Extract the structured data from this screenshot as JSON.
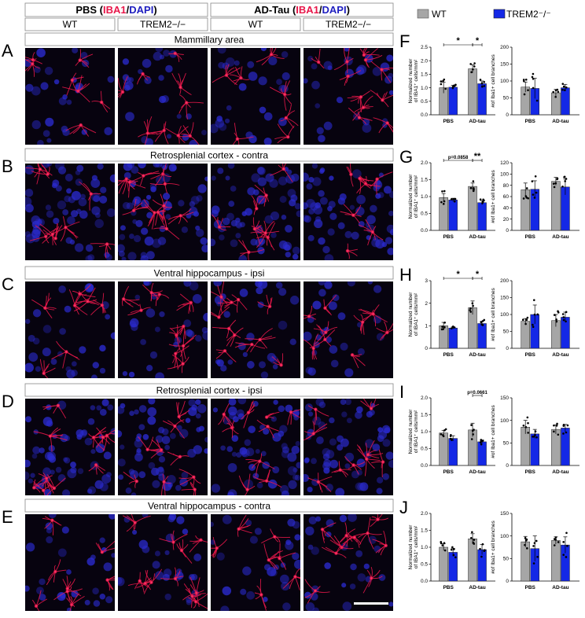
{
  "header": {
    "groups": [
      {
        "name": "PBS",
        "stain_red": "IBA1",
        "stain_blue": "DAPI"
      },
      {
        "name": "AD-Tau",
        "stain_red": "IBA1",
        "stain_blue": "DAPI"
      }
    ],
    "genotypes": [
      "WT",
      "TREM2−/−",
      "WT",
      "TREM2−/−"
    ]
  },
  "legend": {
    "items": [
      {
        "label": "WT",
        "color": "#a6a6a6"
      },
      {
        "label": "TREM2⁻/⁻",
        "color": "#1428e6"
      }
    ]
  },
  "colors": {
    "wt_bar": "#a6a6a6",
    "ko_bar": "#1428e6",
    "iba1": "#e8174a",
    "dapi": "#2b2bd0"
  },
  "rows": [
    {
      "letter": "A",
      "region": "Mammillary area"
    },
    {
      "letter": "B",
      "region": "Retrosplenial cortex - contra"
    },
    {
      "letter": "C",
      "region": "Ventral hippocampus - ipsi"
    },
    {
      "letter": "D",
      "region": "Retrosplenial cortex - ipsi"
    },
    {
      "letter": "E",
      "region": "Ventral hippocampus - contra"
    }
  ],
  "chart_data": [
    {
      "panel": "F",
      "side": "left",
      "type": "bar",
      "ylabel": "Normalized number of IBA1⁺ cells/mm²",
      "ylim": [
        0,
        2.5
      ],
      "ticks": [
        "0.0",
        "0.5",
        "1.0",
        "1.5",
        "2.0",
        "2.5"
      ],
      "categories": [
        "PBS",
        "AD-tau"
      ],
      "series": [
        {
          "name": "WT",
          "values": [
            1.0,
            1.7
          ],
          "errors": [
            0.2,
            0.15
          ]
        },
        {
          "name": "TREM2⁻/⁻",
          "values": [
            1.02,
            1.15
          ],
          "errors": [
            0.07,
            0.1
          ]
        }
      ],
      "annotations": [
        {
          "text": "*",
          "type": "pbs-wt-vs-adtau-wt"
        },
        {
          "text": "*",
          "type": "adtau-wt-vs-ko"
        }
      ]
    },
    {
      "panel": "F",
      "side": "right",
      "type": "bar",
      "ylabel": "#of Iba1+ cell branches",
      "ylim": [
        0,
        200
      ],
      "ticks": [
        "0",
        "50",
        "100",
        "150",
        "200"
      ],
      "categories": [
        "PBS",
        "AD-tau"
      ],
      "series": [
        {
          "name": "WT",
          "values": [
            82,
            65
          ],
          "errors": [
            15,
            10
          ]
        },
        {
          "name": "TREM2⁻/⁻",
          "values": [
            78,
            80
          ],
          "errors": [
            30,
            10
          ]
        }
      ]
    },
    {
      "panel": "G",
      "side": "left",
      "type": "bar",
      "ylabel": "Normalized number of IBA1⁺ cells/mm²",
      "ylim": [
        0,
        2.0
      ],
      "ticks": [
        "0.0",
        "0.5",
        "1.0",
        "1.5",
        "2.0"
      ],
      "categories": [
        "PBS",
        "AD-tau"
      ],
      "series": [
        {
          "name": "WT",
          "values": [
            0.97,
            1.3
          ],
          "errors": [
            0.12,
            0.1
          ]
        },
        {
          "name": "TREM2⁻/⁻",
          "values": [
            0.9,
            0.82
          ],
          "errors": [
            0.05,
            0.06
          ]
        }
      ],
      "annotations": [
        {
          "text": "p=0.0858",
          "type": "pbs-wt-vs-adtau-wt"
        },
        {
          "text": "**",
          "type": "adtau-wt-vs-ko"
        }
      ]
    },
    {
      "panel": "G",
      "side": "right",
      "type": "bar",
      "ylabel": "#of Iba1+ cell branches",
      "ylim": [
        0,
        120
      ],
      "ticks": [
        "0",
        "20",
        "40",
        "60",
        "80",
        "100",
        "120"
      ],
      "categories": [
        "PBS",
        "AD-tau"
      ],
      "series": [
        {
          "name": "WT",
          "values": [
            72,
            87
          ],
          "errors": [
            12,
            7
          ]
        },
        {
          "name": "TREM2⁻/⁻",
          "values": [
            73,
            77
          ],
          "errors": [
            15,
            14
          ]
        }
      ]
    },
    {
      "panel": "H",
      "side": "left",
      "type": "bar",
      "ylabel": "Normalized number of IBA1⁺ cells/mm²",
      "ylim": [
        0,
        3
      ],
      "ticks": [
        "0",
        "1",
        "2",
        "3"
      ],
      "categories": [
        "PBS",
        "AD-tau"
      ],
      "series": [
        {
          "name": "WT",
          "values": [
            1.0,
            1.8
          ],
          "errors": [
            0.15,
            0.3
          ]
        },
        {
          "name": "TREM2⁻/⁻",
          "values": [
            0.9,
            1.1
          ],
          "errors": [
            0.05,
            0.1
          ]
        }
      ],
      "annotations": [
        {
          "text": "*",
          "type": "pbs-wt-vs-adtau-wt"
        },
        {
          "text": "*",
          "type": "adtau-wt-vs-ko"
        }
      ]
    },
    {
      "panel": "H",
      "side": "right",
      "type": "bar",
      "ylabel": "#of Iba1+ cell branches",
      "ylim": [
        0,
        200
      ],
      "ticks": [
        "0",
        "50",
        "100",
        "150",
        "200"
      ],
      "categories": [
        "PBS",
        "AD-tau"
      ],
      "series": [
        {
          "name": "WT",
          "values": [
            80,
            82
          ],
          "errors": [
            8,
            18
          ]
        },
        {
          "name": "TREM2⁻/⁻",
          "values": [
            100,
            92
          ],
          "errors": [
            28,
            15
          ]
        }
      ]
    },
    {
      "panel": "I",
      "side": "left",
      "type": "bar",
      "ylabel": "Normalized number of IBA1⁺ cells/mm²",
      "ylim": [
        0,
        2.0
      ],
      "ticks": [
        "0.0",
        "0.5",
        "1.0",
        "1.5",
        "2.0"
      ],
      "categories": [
        "PBS",
        "AD-tau"
      ],
      "series": [
        {
          "name": "WT",
          "values": [
            0.96,
            1.05
          ],
          "errors": [
            0.08,
            0.2
          ]
        },
        {
          "name": "TREM2⁻/⁻",
          "values": [
            0.8,
            0.7
          ],
          "errors": [
            0.08,
            0.05
          ]
        }
      ],
      "annotations": [
        {
          "text": "p=0.0661",
          "type": "adtau-wt-vs-ko"
        }
      ]
    },
    {
      "panel": "I",
      "side": "right",
      "type": "bar",
      "ylabel": "#of Iba1+ cell branches",
      "ylim": [
        0,
        150
      ],
      "ticks": [
        "0",
        "50",
        "100",
        "150"
      ],
      "categories": [
        "PBS",
        "AD-tau"
      ],
      "series": [
        {
          "name": "WT",
          "values": [
            85,
            80
          ],
          "errors": [
            15,
            10
          ]
        },
        {
          "name": "TREM2⁻/⁻",
          "values": [
            70,
            83
          ],
          "errors": [
            10,
            8
          ]
        }
      ]
    },
    {
      "panel": "J",
      "side": "left",
      "type": "bar",
      "ylabel": "Normalized number of IBA1⁺ cells/mm²",
      "ylim": [
        0,
        2.0
      ],
      "ticks": [
        "0.0",
        "0.5",
        "1.0",
        "1.5",
        "2.0"
      ],
      "categories": [
        "PBS",
        "AD-tau"
      ],
      "series": [
        {
          "name": "WT",
          "values": [
            1.0,
            1.25
          ],
          "errors": [
            0.1,
            0.15
          ]
        },
        {
          "name": "TREM2⁻/⁻",
          "values": [
            0.85,
            0.93
          ],
          "errors": [
            0.12,
            0.15
          ]
        }
      ]
    },
    {
      "panel": "J",
      "side": "right",
      "type": "bar",
      "ylabel": "#of Iba1+ cell branches",
      "ylim": [
        0,
        150
      ],
      "ticks": [
        "0",
        "50",
        "100",
        "150"
      ],
      "categories": [
        "PBS",
        "AD-tau"
      ],
      "series": [
        {
          "name": "WT",
          "values": [
            87,
            90
          ],
          "errors": [
            12,
            8
          ]
        },
        {
          "name": "TREM2⁻/⁻",
          "values": [
            72,
            80
          ],
          "errors": [
            28,
            18
          ]
        }
      ]
    }
  ]
}
